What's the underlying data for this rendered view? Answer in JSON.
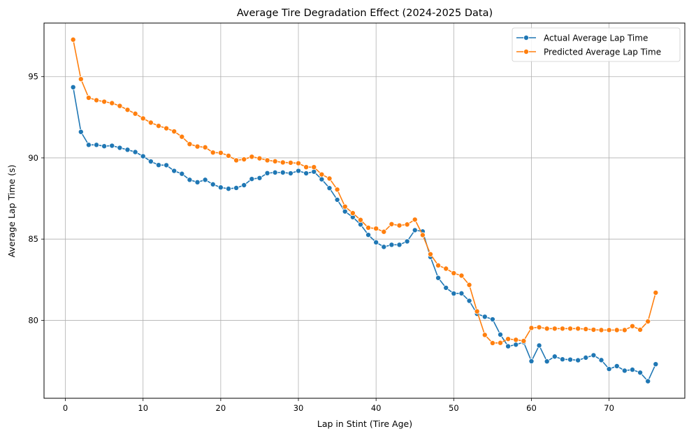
{
  "chart_data": {
    "type": "line",
    "title": "Average Tire Degradation Effect (2024-2025 Data)",
    "xlabel": "Lap in Stint (Tire Age)",
    "ylabel": "Average Lap Time (s)",
    "xlim": [
      -2.75,
      79.75
    ],
    "ylim": [
      75.2,
      98.3
    ],
    "xticks": [
      0,
      10,
      20,
      30,
      40,
      50,
      60,
      70
    ],
    "yticks": [
      80,
      85,
      90,
      95
    ],
    "grid": true,
    "legend_position": "top-right",
    "x": [
      1,
      2,
      3,
      4,
      5,
      6,
      7,
      8,
      9,
      10,
      11,
      12,
      13,
      14,
      15,
      16,
      17,
      18,
      19,
      20,
      21,
      22,
      23,
      24,
      25,
      26,
      27,
      28,
      29,
      30,
      31,
      32,
      33,
      34,
      35,
      36,
      37,
      38,
      39,
      40,
      41,
      42,
      43,
      44,
      45,
      46,
      47,
      48,
      49,
      50,
      51,
      52,
      53,
      54,
      55,
      56,
      57,
      58,
      59,
      60,
      61,
      62,
      63,
      64,
      65,
      66,
      67,
      68,
      69,
      70,
      71,
      72,
      73,
      74,
      75,
      76
    ],
    "series": [
      {
        "name": "Actual Average Lap Time",
        "color": "#1f77b4",
        "values": [
          94.35,
          91.6,
          90.8,
          90.8,
          90.72,
          90.75,
          90.62,
          90.5,
          90.36,
          90.1,
          89.78,
          89.56,
          89.55,
          89.2,
          89.02,
          88.65,
          88.5,
          88.65,
          88.37,
          88.18,
          88.1,
          88.15,
          88.32,
          88.7,
          88.76,
          89.06,
          89.1,
          89.1,
          89.05,
          89.2,
          89.05,
          89.15,
          88.68,
          88.14,
          87.42,
          86.7,
          86.35,
          85.9,
          85.26,
          84.8,
          84.52,
          84.65,
          84.65,
          84.86,
          85.55,
          85.47,
          83.9,
          82.61,
          82.0,
          81.65,
          81.66,
          81.2,
          80.4,
          80.22,
          80.06,
          79.12,
          78.4,
          78.5,
          78.65,
          77.48,
          78.45,
          77.47,
          77.77,
          77.6,
          77.58,
          77.54,
          77.7,
          77.85,
          77.55,
          77.0,
          77.18,
          76.9,
          76.96,
          76.78,
          76.25,
          77.3
        ]
      },
      {
        "name": "Predicted Average Lap Time",
        "color": "#ff7f0e",
        "values": [
          97.28,
          94.85,
          93.7,
          93.55,
          93.46,
          93.37,
          93.2,
          92.96,
          92.72,
          92.43,
          92.17,
          91.97,
          91.82,
          91.63,
          91.3,
          90.85,
          90.7,
          90.65,
          90.33,
          90.31,
          90.13,
          89.85,
          89.91,
          90.07,
          89.97,
          89.85,
          89.79,
          89.72,
          89.7,
          89.67,
          89.43,
          89.43,
          88.98,
          88.73,
          88.05,
          87.0,
          86.6,
          86.18,
          85.7,
          85.65,
          85.45,
          85.92,
          85.84,
          85.9,
          86.2,
          85.25,
          84.07,
          83.38,
          83.18,
          82.9,
          82.75,
          82.18,
          80.55,
          79.1,
          78.6,
          78.61,
          78.85,
          78.8,
          78.73,
          79.53,
          79.57,
          79.49,
          79.49,
          79.49,
          79.49,
          79.49,
          79.46,
          79.42,
          79.4,
          79.4,
          79.4,
          79.4,
          79.64,
          79.42,
          79.93,
          81.7
        ]
      }
    ]
  }
}
